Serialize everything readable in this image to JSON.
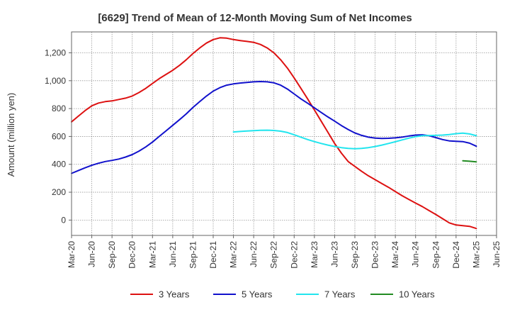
{
  "chart_data": {
    "type": "line",
    "title": "[6629]  Trend of Mean of 12-Month Moving Sum of Net Incomes",
    "xlabel": "",
    "ylabel": "Amount (million yen)",
    "x_ticks": [
      "Mar-20",
      "Jun-20",
      "Sep-20",
      "Dec-20",
      "Mar-21",
      "Jun-21",
      "Sep-21",
      "Dec-21",
      "Mar-22",
      "Jun-22",
      "Sep-22",
      "Dec-22",
      "Mar-23",
      "Jun-23",
      "Sep-23",
      "Dec-23",
      "Mar-24",
      "Jun-24",
      "Sep-24",
      "Dec-24",
      "Mar-25",
      "Jun-25"
    ],
    "y_ticks": [
      "0",
      "200",
      "400",
      "600",
      "800",
      "1,000",
      "1,200"
    ],
    "y_tick_values": [
      0,
      200,
      400,
      600,
      800,
      1000,
      1200
    ],
    "ylim": [
      -110,
      1350
    ],
    "grid": true,
    "legend_position": "bottom",
    "series": [
      {
        "name": "3 Years",
        "color": "#dd1111",
        "x": [
          "Mar-20",
          "Apr-20",
          "May-20",
          "Jun-20",
          "Jul-20",
          "Aug-20",
          "Sep-20",
          "Oct-20",
          "Nov-20",
          "Dec-20",
          "Jan-21",
          "Feb-21",
          "Mar-21",
          "Apr-21",
          "May-21",
          "Jun-21",
          "Jul-21",
          "Aug-21",
          "Sep-21",
          "Oct-21",
          "Nov-21",
          "Dec-21",
          "Jan-22",
          "Feb-22",
          "Mar-22",
          "Apr-22",
          "May-22",
          "Jun-22",
          "Jul-22",
          "Aug-22",
          "Sep-22",
          "Oct-22",
          "Nov-22",
          "Dec-22",
          "Jan-23",
          "Feb-23",
          "Mar-23",
          "Apr-23",
          "May-23",
          "Jun-23",
          "Jul-23",
          "Aug-23",
          "Sep-23",
          "Oct-23",
          "Nov-23",
          "Dec-23",
          "Jan-24",
          "Feb-24",
          "Mar-24",
          "Apr-24",
          "May-24",
          "Jun-24",
          "Jul-24",
          "Aug-24",
          "Sep-24",
          "Oct-24",
          "Nov-24",
          "Dec-24",
          "Jan-25",
          "Feb-25",
          "Mar-25"
        ],
        "values": [
          705,
          745,
          785,
          820,
          840,
          850,
          855,
          865,
          875,
          890,
          915,
          945,
          980,
          1015,
          1045,
          1075,
          1110,
          1150,
          1195,
          1235,
          1270,
          1295,
          1308,
          1305,
          1295,
          1288,
          1282,
          1275,
          1260,
          1235,
          1200,
          1150,
          1090,
          1020,
          945,
          870,
          790,
          710,
          630,
          550,
          480,
          420,
          385,
          350,
          318,
          290,
          262,
          235,
          205,
          175,
          148,
          122,
          97,
          68,
          40,
          10,
          -20,
          -35,
          -40,
          -45,
          -60
        ]
      },
      {
        "name": "5 Years",
        "color": "#1111cc",
        "x": [
          "Mar-20",
          "Apr-20",
          "May-20",
          "Jun-20",
          "Jul-20",
          "Aug-20",
          "Sep-20",
          "Oct-20",
          "Nov-20",
          "Dec-20",
          "Jan-21",
          "Feb-21",
          "Mar-21",
          "Apr-21",
          "May-21",
          "Jun-21",
          "Jul-21",
          "Aug-21",
          "Sep-21",
          "Oct-21",
          "Nov-21",
          "Dec-21",
          "Jan-22",
          "Feb-22",
          "Mar-22",
          "Apr-22",
          "May-22",
          "Jun-22",
          "Jul-22",
          "Aug-22",
          "Sep-22",
          "Oct-22",
          "Nov-22",
          "Dec-22",
          "Jan-23",
          "Feb-23",
          "Mar-23",
          "Apr-23",
          "May-23",
          "Jun-23",
          "Jul-23",
          "Aug-23",
          "Sep-23",
          "Oct-23",
          "Nov-23",
          "Dec-23",
          "Jan-24",
          "Feb-24",
          "Mar-24",
          "Apr-24",
          "May-24",
          "Jun-24",
          "Jul-24",
          "Aug-24",
          "Sep-24",
          "Oct-24",
          "Nov-24",
          "Dec-24",
          "Jan-25",
          "Feb-25",
          "Mar-25"
        ],
        "values": [
          335,
          355,
          375,
          393,
          408,
          420,
          428,
          438,
          452,
          470,
          495,
          525,
          560,
          600,
          640,
          680,
          720,
          762,
          808,
          850,
          890,
          925,
          950,
          968,
          977,
          983,
          988,
          992,
          994,
          992,
          985,
          968,
          940,
          905,
          870,
          838,
          805,
          772,
          740,
          710,
          678,
          650,
          625,
          608,
          595,
          588,
          586,
          587,
          590,
          595,
          603,
          610,
          612,
          605,
          592,
          578,
          568,
          565,
          563,
          552,
          530
        ]
      },
      {
        "name": "7 Years",
        "color": "#22e5ee",
        "x": [
          "Mar-22",
          "Apr-22",
          "May-22",
          "Jun-22",
          "Jul-22",
          "Aug-22",
          "Sep-22",
          "Oct-22",
          "Nov-22",
          "Dec-22",
          "Jan-23",
          "Feb-23",
          "Mar-23",
          "Apr-23",
          "May-23",
          "Jun-23",
          "Jul-23",
          "Aug-23",
          "Sep-23",
          "Oct-23",
          "Nov-23",
          "Dec-23",
          "Jan-24",
          "Feb-24",
          "Mar-24",
          "Apr-24",
          "May-24",
          "Jun-24",
          "Jul-24",
          "Aug-24",
          "Sep-24",
          "Oct-24",
          "Nov-24",
          "Dec-24",
          "Jan-25",
          "Feb-25",
          "Mar-25"
        ],
        "values": [
          632,
          636,
          639,
          642,
          644,
          645,
          643,
          638,
          628,
          612,
          595,
          578,
          563,
          550,
          538,
          528,
          520,
          514,
          512,
          514,
          520,
          528,
          538,
          550,
          562,
          575,
          588,
          598,
          605,
          607,
          608,
          610,
          614,
          620,
          624,
          618,
          605
        ]
      },
      {
        "name": "10 Years",
        "color": "#228b22",
        "x": [
          "Jan-25",
          "Feb-25",
          "Mar-25"
        ],
        "values": [
          425,
          422,
          418
        ]
      }
    ]
  }
}
